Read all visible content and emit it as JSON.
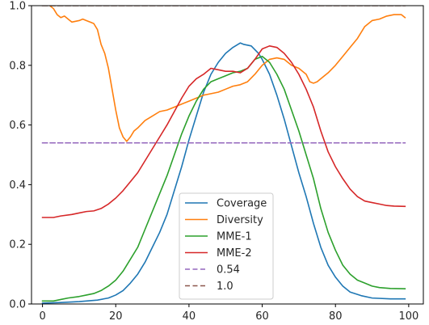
{
  "chart_data": {
    "type": "line",
    "title": "",
    "xlabel": "",
    "ylabel": "",
    "xlim": [
      -3,
      104
    ],
    "ylim": [
      0,
      1
    ],
    "grid": false,
    "legend_placement": "lower-center",
    "x_ticks": [
      0,
      20,
      40,
      60,
      80,
      100
    ],
    "y_ticks": [
      0.0,
      0.2,
      0.4,
      0.6,
      0.8,
      1.0
    ],
    "x_tick_labels": [
      "0",
      "20",
      "40",
      "60",
      "80",
      "100"
    ],
    "y_tick_labels": [
      "0.0",
      "0.2",
      "0.4",
      "0.6",
      "0.8",
      "1.0"
    ],
    "series": [
      {
        "name": "Coverage",
        "color": "#1f77b4",
        "style": "solid",
        "points": [
          [
            0,
            0.003
          ],
          [
            5,
            0.005
          ],
          [
            10,
            0.008
          ],
          [
            15,
            0.013
          ],
          [
            18,
            0.02
          ],
          [
            20,
            0.03
          ],
          [
            22,
            0.045
          ],
          [
            24,
            0.07
          ],
          [
            26,
            0.1
          ],
          [
            28,
            0.14
          ],
          [
            30,
            0.19
          ],
          [
            32,
            0.24
          ],
          [
            34,
            0.3
          ],
          [
            36,
            0.38
          ],
          [
            38,
            0.46
          ],
          [
            40,
            0.55
          ],
          [
            42,
            0.63
          ],
          [
            44,
            0.71
          ],
          [
            46,
            0.77
          ],
          [
            48,
            0.81
          ],
          [
            50,
            0.84
          ],
          [
            52,
            0.86
          ],
          [
            54,
            0.875
          ],
          [
            55,
            0.87
          ],
          [
            57,
            0.865
          ],
          [
            59,
            0.84
          ],
          [
            60,
            0.82
          ],
          [
            62,
            0.77
          ],
          [
            64,
            0.7
          ],
          [
            66,
            0.62
          ],
          [
            68,
            0.53
          ],
          [
            70,
            0.44
          ],
          [
            72,
            0.36
          ],
          [
            74,
            0.27
          ],
          [
            76,
            0.19
          ],
          [
            78,
            0.13
          ],
          [
            80,
            0.09
          ],
          [
            82,
            0.06
          ],
          [
            84,
            0.04
          ],
          [
            87,
            0.028
          ],
          [
            90,
            0.02
          ],
          [
            95,
            0.017
          ],
          [
            99,
            0.017
          ]
        ]
      },
      {
        "name": "Diversity",
        "color": "#ff7f0e",
        "style": "solid",
        "points": [
          [
            2,
            1.0
          ],
          [
            3,
            0.99
          ],
          [
            4,
            0.97
          ],
          [
            5,
            0.96
          ],
          [
            6,
            0.965
          ],
          [
            7,
            0.955
          ],
          [
            8,
            0.945
          ],
          [
            10,
            0.95
          ],
          [
            11,
            0.955
          ],
          [
            12,
            0.95
          ],
          [
            13,
            0.945
          ],
          [
            14,
            0.94
          ],
          [
            15,
            0.92
          ],
          [
            16,
            0.87
          ],
          [
            17,
            0.84
          ],
          [
            18,
            0.79
          ],
          [
            19,
            0.72
          ],
          [
            20,
            0.65
          ],
          [
            21,
            0.59
          ],
          [
            22,
            0.56
          ],
          [
            23,
            0.545
          ],
          [
            24,
            0.56
          ],
          [
            25,
            0.58
          ],
          [
            26,
            0.59
          ],
          [
            28,
            0.615
          ],
          [
            30,
            0.63
          ],
          [
            32,
            0.645
          ],
          [
            34,
            0.65
          ],
          [
            36,
            0.66
          ],
          [
            38,
            0.67
          ],
          [
            40,
            0.68
          ],
          [
            42,
            0.69
          ],
          [
            44,
            0.7
          ],
          [
            46,
            0.705
          ],
          [
            48,
            0.71
          ],
          [
            50,
            0.72
          ],
          [
            52,
            0.73
          ],
          [
            54,
            0.735
          ],
          [
            56,
            0.745
          ],
          [
            58,
            0.77
          ],
          [
            60,
            0.8
          ],
          [
            62,
            0.82
          ],
          [
            64,
            0.825
          ],
          [
            66,
            0.82
          ],
          [
            68,
            0.8
          ],
          [
            70,
            0.79
          ],
          [
            72,
            0.77
          ],
          [
            73,
            0.745
          ],
          [
            74,
            0.74
          ],
          [
            75,
            0.745
          ],
          [
            76,
            0.755
          ],
          [
            78,
            0.775
          ],
          [
            80,
            0.8
          ],
          [
            82,
            0.83
          ],
          [
            84,
            0.86
          ],
          [
            86,
            0.89
          ],
          [
            88,
            0.93
          ],
          [
            90,
            0.95
          ],
          [
            92,
            0.955
          ],
          [
            94,
            0.965
          ],
          [
            96,
            0.97
          ],
          [
            98,
            0.97
          ],
          [
            99,
            0.96
          ]
        ]
      },
      {
        "name": "MME-1",
        "color": "#2ca02c",
        "style": "solid",
        "points": [
          [
            0,
            0.01
          ],
          [
            3,
            0.01
          ],
          [
            5,
            0.015
          ],
          [
            7,
            0.02
          ],
          [
            10,
            0.025
          ],
          [
            12,
            0.03
          ],
          [
            14,
            0.035
          ],
          [
            16,
            0.045
          ],
          [
            18,
            0.06
          ],
          [
            20,
            0.08
          ],
          [
            22,
            0.11
          ],
          [
            24,
            0.15
          ],
          [
            26,
            0.19
          ],
          [
            28,
            0.25
          ],
          [
            30,
            0.31
          ],
          [
            32,
            0.37
          ],
          [
            34,
            0.43
          ],
          [
            36,
            0.5
          ],
          [
            38,
            0.57
          ],
          [
            40,
            0.63
          ],
          [
            42,
            0.68
          ],
          [
            44,
            0.72
          ],
          [
            46,
            0.745
          ],
          [
            48,
            0.755
          ],
          [
            50,
            0.765
          ],
          [
            52,
            0.775
          ],
          [
            54,
            0.78
          ],
          [
            56,
            0.79
          ],
          [
            58,
            0.82
          ],
          [
            60,
            0.83
          ],
          [
            62,
            0.81
          ],
          [
            64,
            0.77
          ],
          [
            66,
            0.72
          ],
          [
            68,
            0.65
          ],
          [
            70,
            0.58
          ],
          [
            72,
            0.5
          ],
          [
            74,
            0.42
          ],
          [
            76,
            0.32
          ],
          [
            78,
            0.24
          ],
          [
            80,
            0.18
          ],
          [
            82,
            0.13
          ],
          [
            84,
            0.1
          ],
          [
            86,
            0.08
          ],
          [
            88,
            0.07
          ],
          [
            90,
            0.06
          ],
          [
            92,
            0.055
          ],
          [
            95,
            0.052
          ],
          [
            99,
            0.051
          ]
        ]
      },
      {
        "name": "MME-2",
        "color": "#d62728",
        "style": "solid",
        "points": [
          [
            0,
            0.29
          ],
          [
            3,
            0.29
          ],
          [
            5,
            0.295
          ],
          [
            8,
            0.3
          ],
          [
            10,
            0.305
          ],
          [
            12,
            0.31
          ],
          [
            14,
            0.312
          ],
          [
            16,
            0.32
          ],
          [
            18,
            0.335
          ],
          [
            20,
            0.355
          ],
          [
            22,
            0.38
          ],
          [
            24,
            0.41
          ],
          [
            26,
            0.44
          ],
          [
            28,
            0.48
          ],
          [
            30,
            0.52
          ],
          [
            32,
            0.56
          ],
          [
            34,
            0.6
          ],
          [
            36,
            0.645
          ],
          [
            38,
            0.69
          ],
          [
            40,
            0.73
          ],
          [
            42,
            0.755
          ],
          [
            44,
            0.77
          ],
          [
            46,
            0.79
          ],
          [
            48,
            0.785
          ],
          [
            50,
            0.78
          ],
          [
            52,
            0.78
          ],
          [
            54,
            0.775
          ],
          [
            56,
            0.79
          ],
          [
            58,
            0.82
          ],
          [
            60,
            0.855
          ],
          [
            62,
            0.865
          ],
          [
            64,
            0.86
          ],
          [
            66,
            0.84
          ],
          [
            68,
            0.81
          ],
          [
            70,
            0.77
          ],
          [
            72,
            0.72
          ],
          [
            74,
            0.66
          ],
          [
            76,
            0.58
          ],
          [
            78,
            0.51
          ],
          [
            80,
            0.46
          ],
          [
            82,
            0.42
          ],
          [
            84,
            0.385
          ],
          [
            86,
            0.36
          ],
          [
            88,
            0.345
          ],
          [
            90,
            0.34
          ],
          [
            92,
            0.335
          ],
          [
            94,
            0.33
          ],
          [
            96,
            0.328
          ],
          [
            99,
            0.327
          ]
        ]
      },
      {
        "name": "0.54",
        "color": "#9467bd",
        "style": "dashed",
        "points": [
          [
            0,
            0.54
          ],
          [
            99,
            0.54
          ]
        ]
      },
      {
        "name": "1.0",
        "color": "#8c564b",
        "style": "dashed",
        "points": [
          [
            0,
            1.0
          ],
          [
            99,
            1.0
          ]
        ]
      }
    ]
  }
}
